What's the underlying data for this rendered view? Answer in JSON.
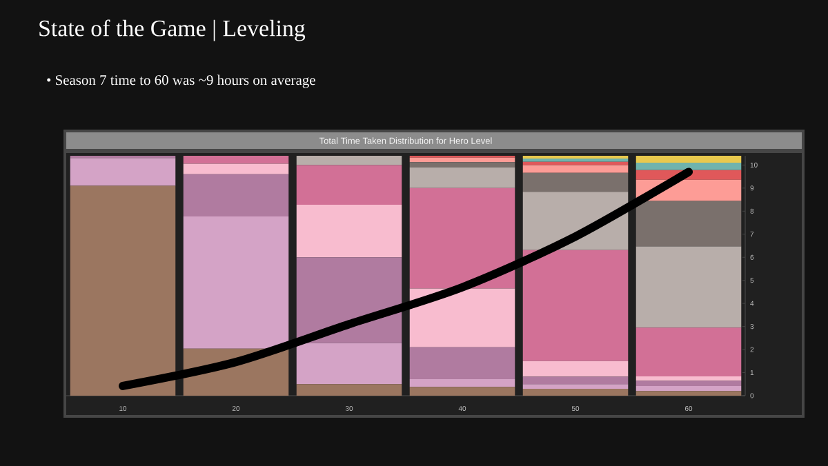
{
  "chart_data": {
    "type": "bar",
    "title": "State of the Game | Leveling",
    "subtitle": "•  Season 7 time to 60 was ~9 hours on average",
    "annotations": [
      "Total Time Taken Distribution for Hero Level"
    ],
    "categories": [
      "10",
      "20",
      "30",
      "40",
      "50",
      "60"
    ],
    "stacked": true,
    "ylim": [
      0,
      10.4
    ],
    "yticks": [
      0,
      1,
      2,
      3,
      4,
      5,
      6,
      7,
      8,
      9,
      10
    ],
    "grid": false,
    "series": [
      {
        "color": "#9b7660",
        "values": [
          9.1,
          2.04,
          0.5,
          0.38,
          0.3,
          0.2
        ]
      },
      {
        "color": "#d4a3c6",
        "values": [
          1.2,
          5.73,
          1.78,
          0.34,
          0.2,
          0.22
        ]
      },
      {
        "color": "#b07ba0",
        "values": [
          0.1,
          1.83,
          3.72,
          1.38,
          0.32,
          0.22
        ]
      },
      {
        "color": "#f8bccf",
        "values": [
          null,
          0.46,
          2.28,
          2.55,
          0.68,
          0.2
        ]
      },
      {
        "color": "#d27096",
        "values": [
          null,
          0.34,
          1.72,
          4.35,
          4.81,
          2.11
        ]
      },
      {
        "color": "#b8aeaa",
        "values": [
          null,
          null,
          0.4,
          0.9,
          2.53,
          3.52
        ]
      },
      {
        "color": "#7a706c",
        "values": [
          null,
          null,
          null,
          0.22,
          0.82,
          1.97
        ]
      },
      {
        "color": "#fd9c96",
        "values": [
          null,
          null,
          null,
          0.2,
          0.34,
          0.92
        ]
      },
      {
        "color": "#e0585a",
        "values": [
          null,
          null,
          null,
          0.08,
          0.14,
          0.42
        ]
      },
      {
        "color": "#6fb3ad",
        "values": [
          null,
          null,
          null,
          null,
          0.14,
          0.32
        ]
      },
      {
        "color": "#e8c84d",
        "values": [
          null,
          null,
          null,
          null,
          0.12,
          0.3
        ]
      },
      {
        "type": "line",
        "color": "#000000",
        "marker": "none",
        "line_style": "solid",
        "values": [
          0.42,
          1.46,
          3.1,
          4.7,
          6.9,
          9.7
        ]
      }
    ]
  }
}
